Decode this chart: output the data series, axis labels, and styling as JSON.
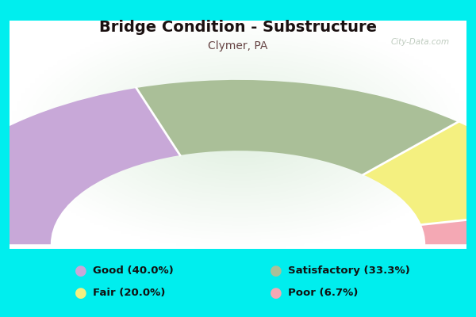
{
  "title": "Bridge Condition - Substructure",
  "subtitle": "Clymer, PA",
  "background_color": "#00EEEE",
  "chart_bg_start": "#e8f4e8",
  "chart_bg_end": "#f8fff8",
  "segments": [
    {
      "label": "Good (40.0%)",
      "value": 40.0,
      "color": "#c8a8d8"
    },
    {
      "label": "Satisfactory (33.3%)",
      "value": 33.3,
      "color": "#aabf98"
    },
    {
      "label": "Fair (20.0%)",
      "value": 20.0,
      "color": "#f4f080"
    },
    {
      "label": "Poor (6.7%)",
      "value": 6.7,
      "color": "#f4a8b4"
    }
  ],
  "watermark": "City-Data.com",
  "title_color": "#1a1010",
  "subtitle_color": "#664444",
  "legend_text_color": "#111111"
}
